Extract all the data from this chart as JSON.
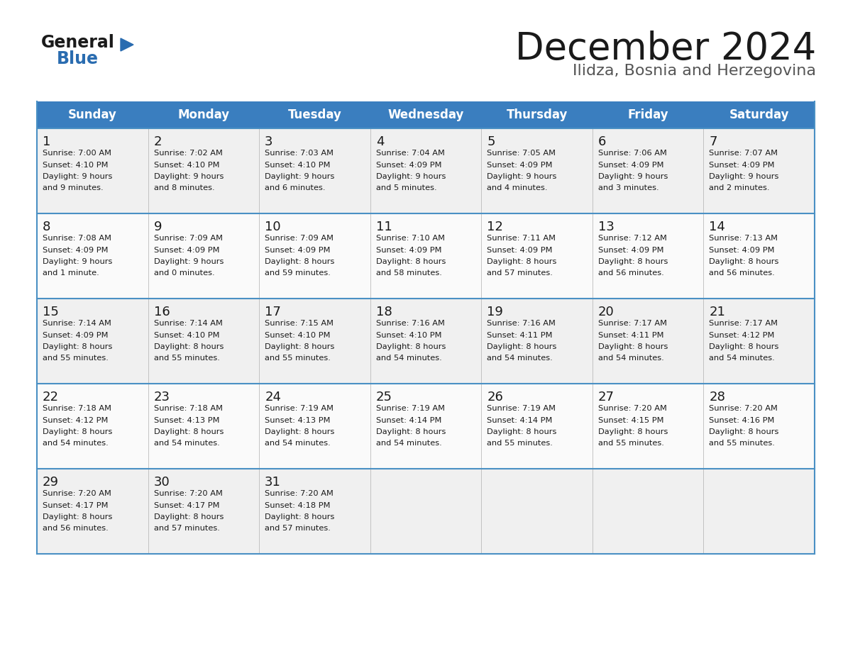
{
  "title": "December 2024",
  "subtitle": "Ilidza, Bosnia and Herzegovina",
  "header_color": "#3a7ebf",
  "header_text_color": "#ffffff",
  "border_color": "#4a90c4",
  "day_headers": [
    "Sunday",
    "Monday",
    "Tuesday",
    "Wednesday",
    "Thursday",
    "Friday",
    "Saturday"
  ],
  "weeks": [
    [
      {
        "day": 1,
        "sunrise": "7:00 AM",
        "sunset": "4:10 PM",
        "daylight": "9 hours\nand 9 minutes."
      },
      {
        "day": 2,
        "sunrise": "7:02 AM",
        "sunset": "4:10 PM",
        "daylight": "9 hours\nand 8 minutes."
      },
      {
        "day": 3,
        "sunrise": "7:03 AM",
        "sunset": "4:10 PM",
        "daylight": "9 hours\nand 6 minutes."
      },
      {
        "day": 4,
        "sunrise": "7:04 AM",
        "sunset": "4:09 PM",
        "daylight": "9 hours\nand 5 minutes."
      },
      {
        "day": 5,
        "sunrise": "7:05 AM",
        "sunset": "4:09 PM",
        "daylight": "9 hours\nand 4 minutes."
      },
      {
        "day": 6,
        "sunrise": "7:06 AM",
        "sunset": "4:09 PM",
        "daylight": "9 hours\nand 3 minutes."
      },
      {
        "day": 7,
        "sunrise": "7:07 AM",
        "sunset": "4:09 PM",
        "daylight": "9 hours\nand 2 minutes."
      }
    ],
    [
      {
        "day": 8,
        "sunrise": "7:08 AM",
        "sunset": "4:09 PM",
        "daylight": "9 hours\nand 1 minute."
      },
      {
        "day": 9,
        "sunrise": "7:09 AM",
        "sunset": "4:09 PM",
        "daylight": "9 hours\nand 0 minutes."
      },
      {
        "day": 10,
        "sunrise": "7:09 AM",
        "sunset": "4:09 PM",
        "daylight": "8 hours\nand 59 minutes."
      },
      {
        "day": 11,
        "sunrise": "7:10 AM",
        "sunset": "4:09 PM",
        "daylight": "8 hours\nand 58 minutes."
      },
      {
        "day": 12,
        "sunrise": "7:11 AM",
        "sunset": "4:09 PM",
        "daylight": "8 hours\nand 57 minutes."
      },
      {
        "day": 13,
        "sunrise": "7:12 AM",
        "sunset": "4:09 PM",
        "daylight": "8 hours\nand 56 minutes."
      },
      {
        "day": 14,
        "sunrise": "7:13 AM",
        "sunset": "4:09 PM",
        "daylight": "8 hours\nand 56 minutes."
      }
    ],
    [
      {
        "day": 15,
        "sunrise": "7:14 AM",
        "sunset": "4:09 PM",
        "daylight": "8 hours\nand 55 minutes."
      },
      {
        "day": 16,
        "sunrise": "7:14 AM",
        "sunset": "4:10 PM",
        "daylight": "8 hours\nand 55 minutes."
      },
      {
        "day": 17,
        "sunrise": "7:15 AM",
        "sunset": "4:10 PM",
        "daylight": "8 hours\nand 55 minutes."
      },
      {
        "day": 18,
        "sunrise": "7:16 AM",
        "sunset": "4:10 PM",
        "daylight": "8 hours\nand 54 minutes."
      },
      {
        "day": 19,
        "sunrise": "7:16 AM",
        "sunset": "4:11 PM",
        "daylight": "8 hours\nand 54 minutes."
      },
      {
        "day": 20,
        "sunrise": "7:17 AM",
        "sunset": "4:11 PM",
        "daylight": "8 hours\nand 54 minutes."
      },
      {
        "day": 21,
        "sunrise": "7:17 AM",
        "sunset": "4:12 PM",
        "daylight": "8 hours\nand 54 minutes."
      }
    ],
    [
      {
        "day": 22,
        "sunrise": "7:18 AM",
        "sunset": "4:12 PM",
        "daylight": "8 hours\nand 54 minutes."
      },
      {
        "day": 23,
        "sunrise": "7:18 AM",
        "sunset": "4:13 PM",
        "daylight": "8 hours\nand 54 minutes."
      },
      {
        "day": 24,
        "sunrise": "7:19 AM",
        "sunset": "4:13 PM",
        "daylight": "8 hours\nand 54 minutes."
      },
      {
        "day": 25,
        "sunrise": "7:19 AM",
        "sunset": "4:14 PM",
        "daylight": "8 hours\nand 54 minutes."
      },
      {
        "day": 26,
        "sunrise": "7:19 AM",
        "sunset": "4:14 PM",
        "daylight": "8 hours\nand 55 minutes."
      },
      {
        "day": 27,
        "sunrise": "7:20 AM",
        "sunset": "4:15 PM",
        "daylight": "8 hours\nand 55 minutes."
      },
      {
        "day": 28,
        "sunrise": "7:20 AM",
        "sunset": "4:16 PM",
        "daylight": "8 hours\nand 55 minutes."
      }
    ],
    [
      {
        "day": 29,
        "sunrise": "7:20 AM",
        "sunset": "4:17 PM",
        "daylight": "8 hours\nand 56 minutes."
      },
      {
        "day": 30,
        "sunrise": "7:20 AM",
        "sunset": "4:17 PM",
        "daylight": "8 hours\nand 57 minutes."
      },
      {
        "day": 31,
        "sunrise": "7:20 AM",
        "sunset": "4:18 PM",
        "daylight": "8 hours\nand 57 minutes."
      },
      null,
      null,
      null,
      null
    ]
  ],
  "logo_color_general": "#1a1a1a",
  "logo_color_blue": "#2a6cb0",
  "logo_triangle_color": "#2a6cb0"
}
